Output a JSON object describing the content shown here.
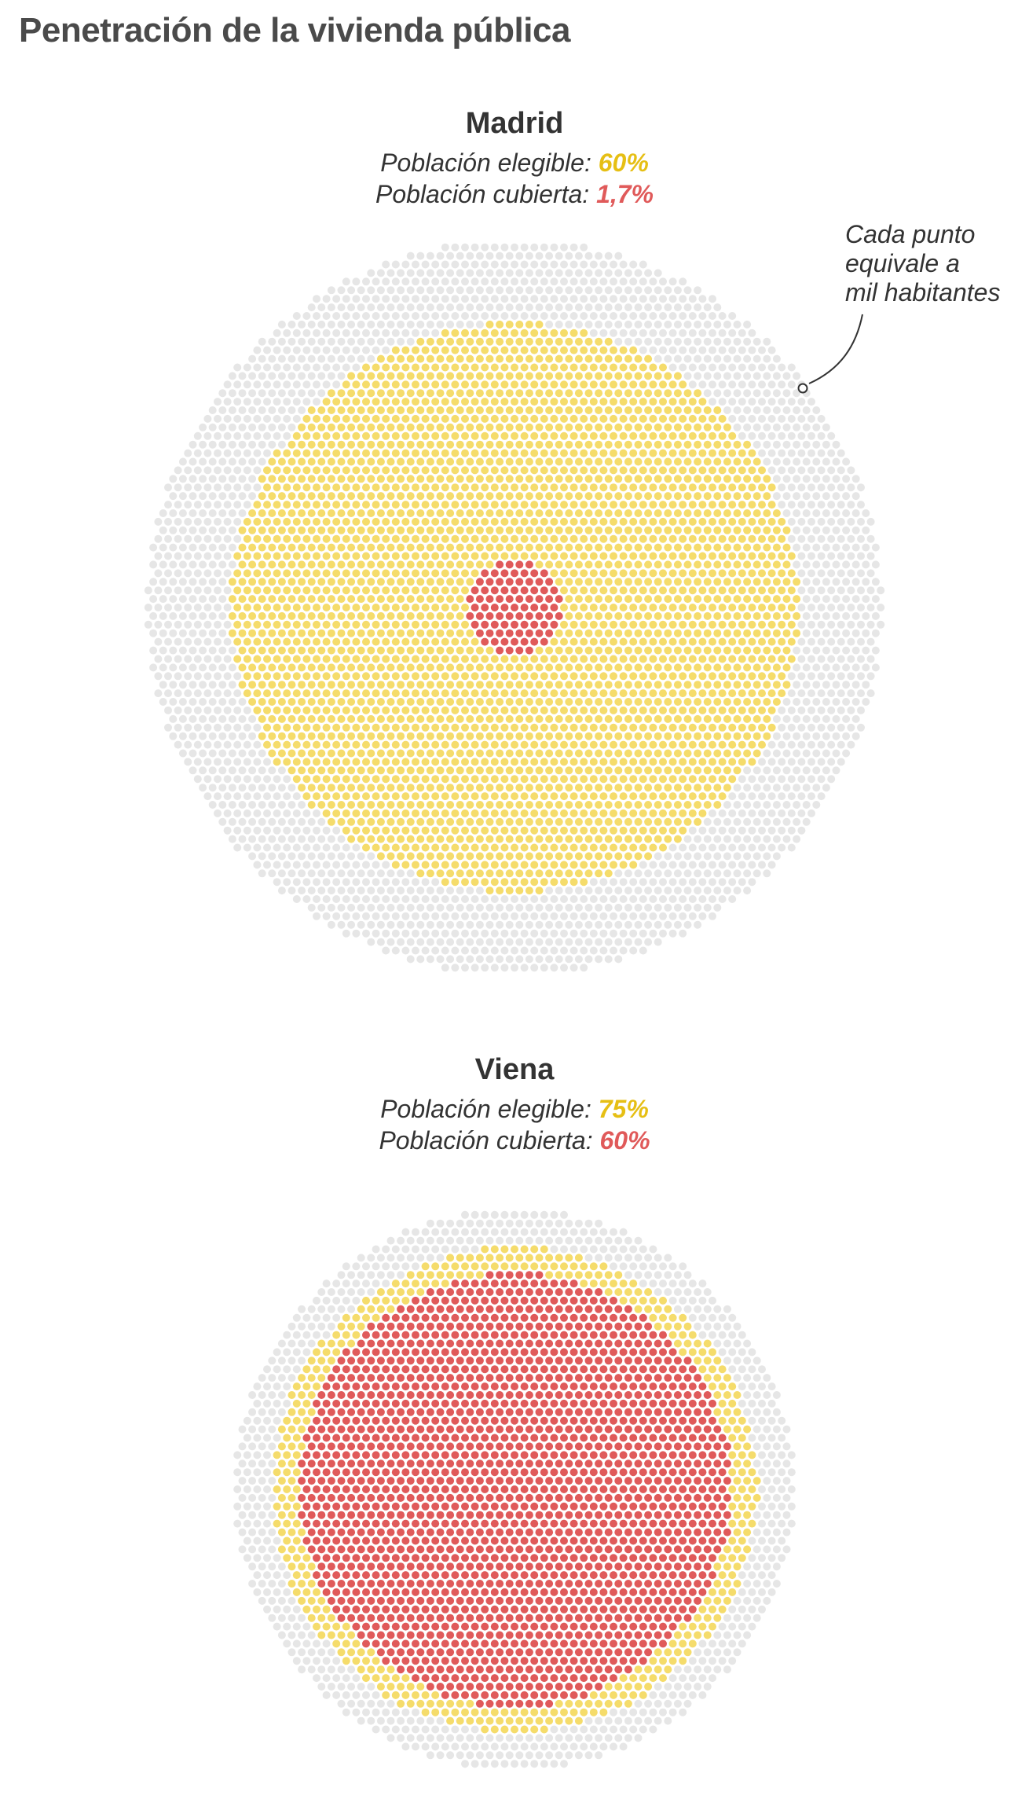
{
  "title": "Penetración de la vivienda pública",
  "annotation": {
    "line1": "Cada punto",
    "line2": "equivale a",
    "line3": "mil habitantes"
  },
  "colors": {
    "background_dot": "#e6e6e6",
    "eligible": "#f5dc6b",
    "eligible_text": "#e6bf14",
    "covered": "#e05a5a",
    "text": "#333333"
  },
  "panels": [
    {
      "city": "Madrid",
      "eligible_label": "Población elegible:",
      "eligible_value": "60%",
      "covered_label": "Población cubierta:",
      "covered_value": "1,7%"
    },
    {
      "city": "Viena",
      "eligible_label": "Población elegible:",
      "eligible_value": "75%",
      "covered_label": "Población cubierta:",
      "covered_value": "60%"
    }
  ],
  "chart_data": [
    {
      "type": "dot-proportion",
      "title": "Madrid",
      "unit": "Cada punto equivale a mil habitantes",
      "series": [
        {
          "name": "Población elegible",
          "percent": 60
        },
        {
          "name": "Población cubierta",
          "percent": 1.7
        }
      ]
    },
    {
      "type": "dot-proportion",
      "title": "Viena",
      "unit": "Cada punto equivale a mil habitantes",
      "series": [
        {
          "name": "Población elegible",
          "percent": 75
        },
        {
          "name": "Población cubierta",
          "percent": 60
        }
      ]
    }
  ]
}
